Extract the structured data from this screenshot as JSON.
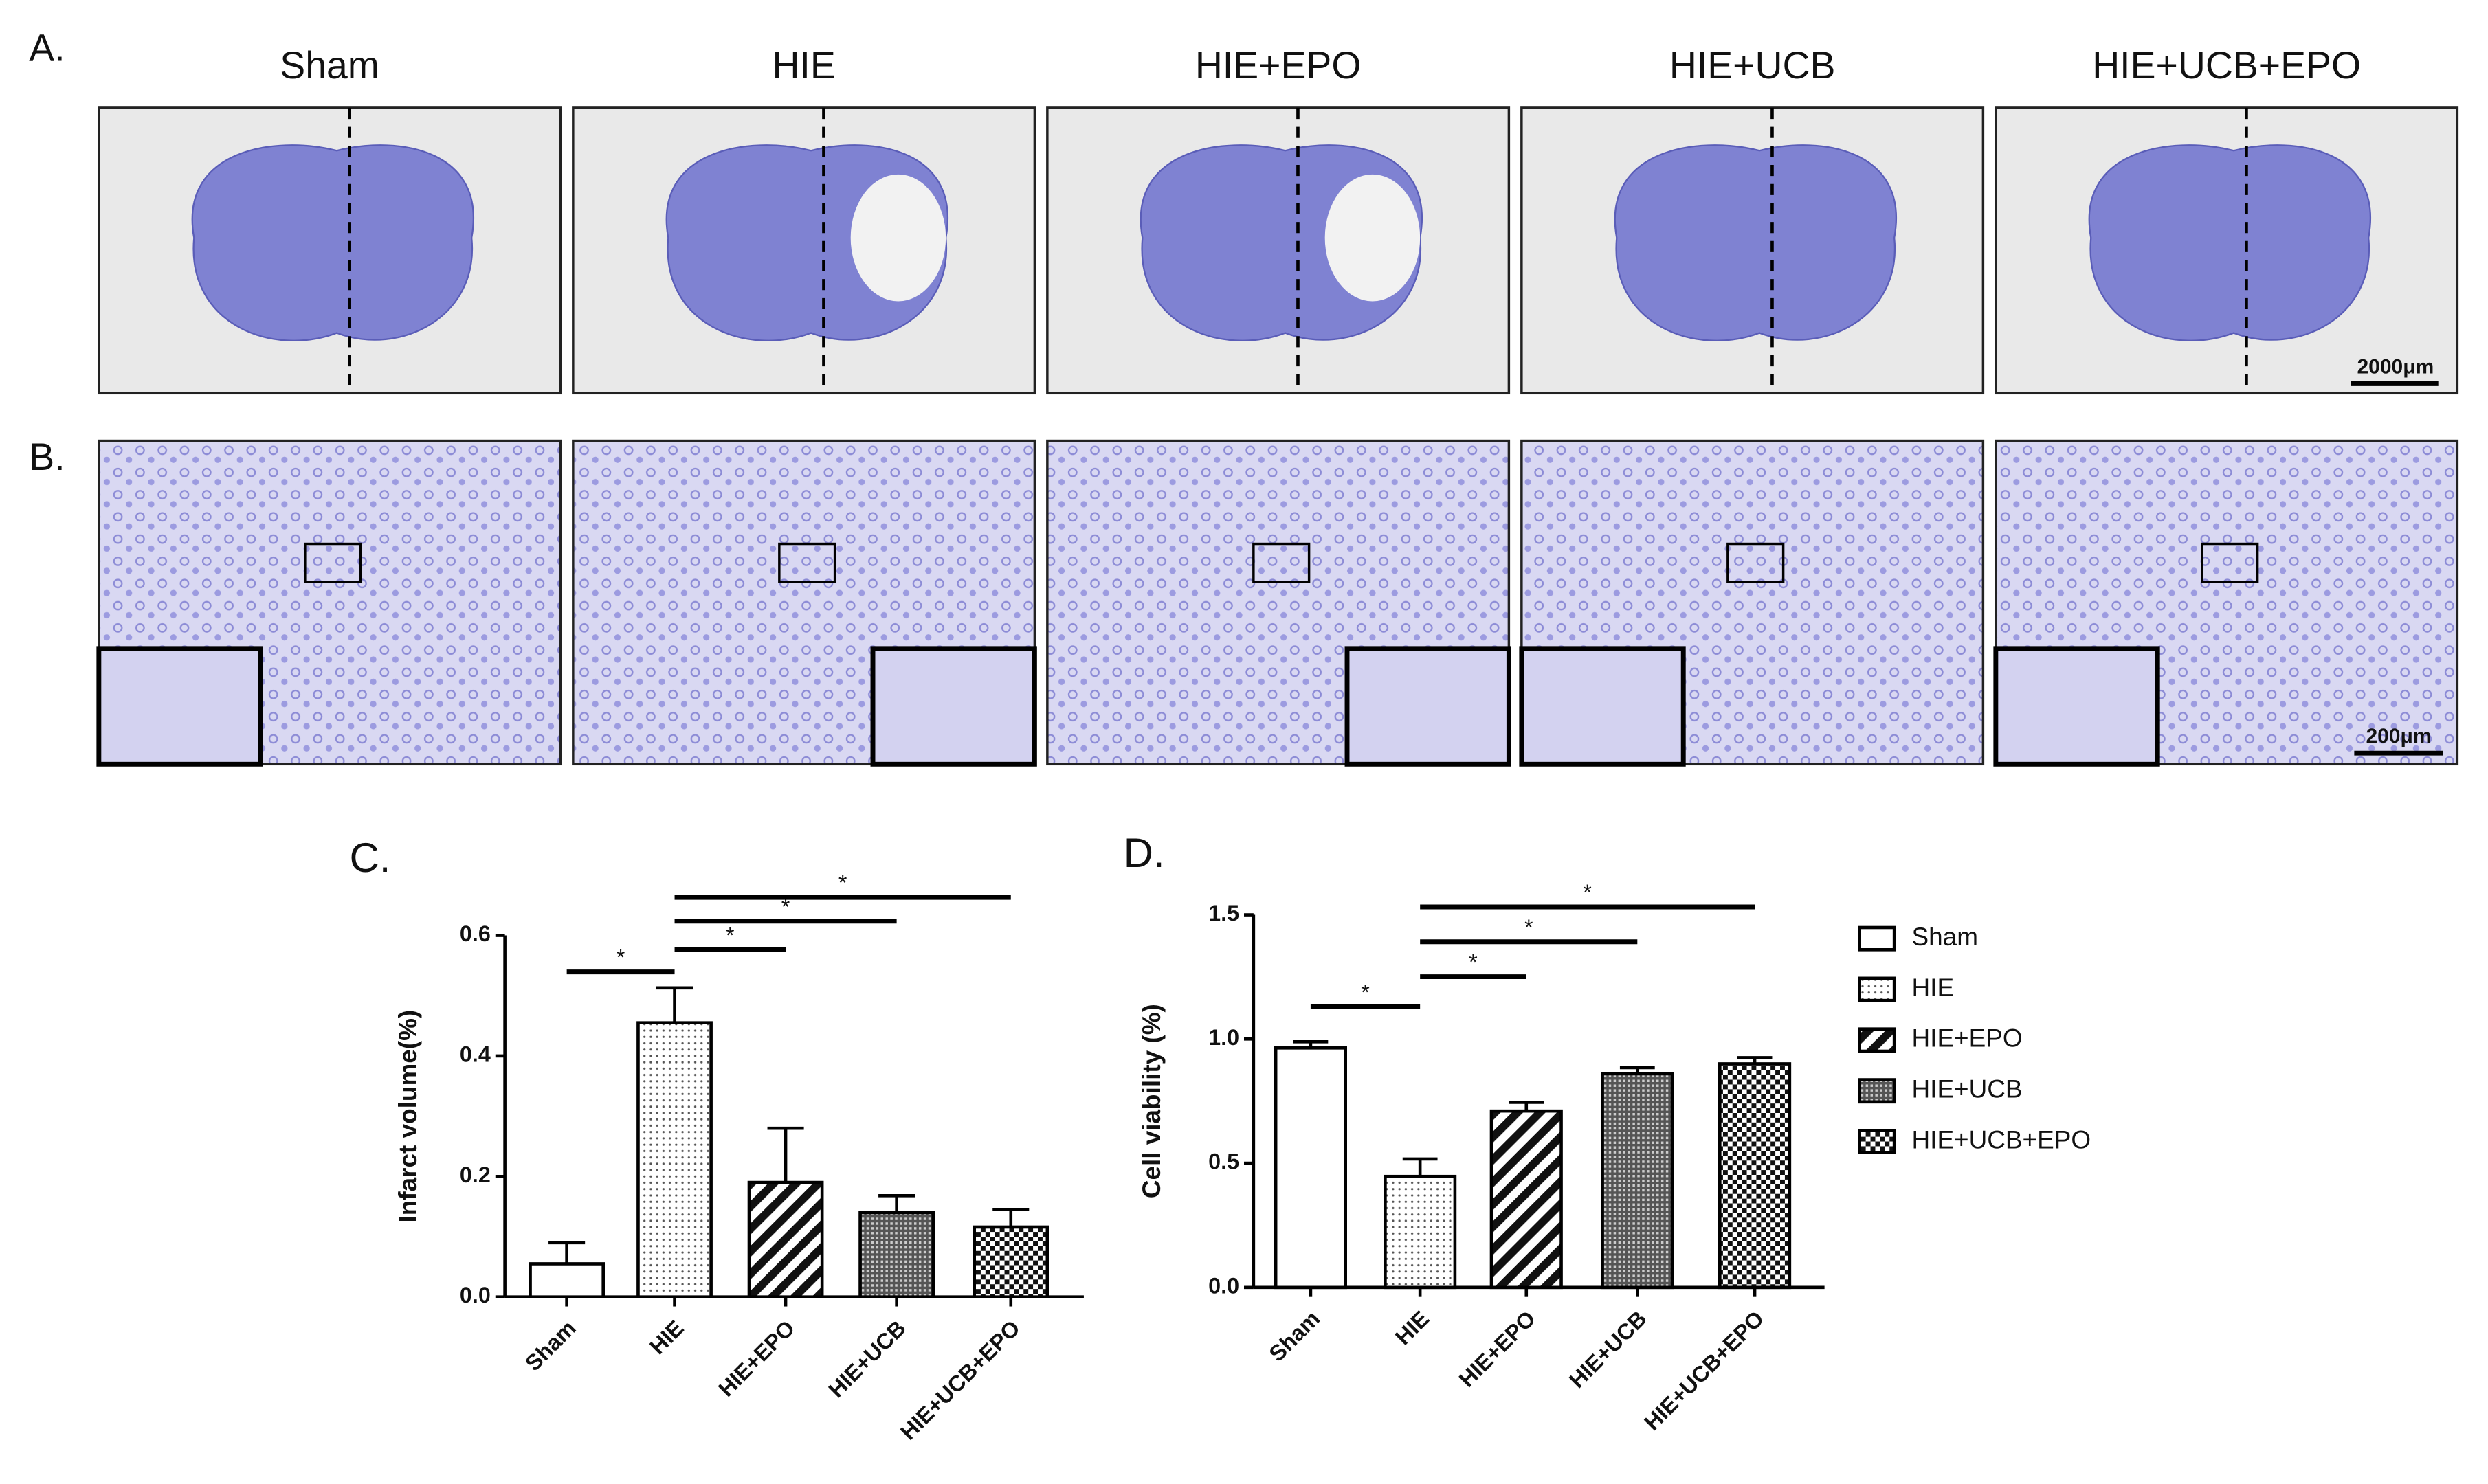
{
  "figure": {
    "panel_labels": [
      "A.",
      "B."
    ],
    "columns": [
      "Sham",
      "HIE",
      "HIE+EPO",
      "HIE+UCB",
      "HIE+UCB+EPO"
    ],
    "scale_bars": [
      "2000μm",
      "200μm"
    ]
  },
  "chart_data": [
    {
      "type": "bar",
      "label": "C.",
      "y_label": "Infarct volume(%)",
      "categories": [
        "Sham",
        "HIE",
        "HIE+EPO",
        "HIE+UCB",
        "HIE+UCB+EPO"
      ],
      "values": [
        0.055,
        0.455,
        0.19,
        0.14,
        0.116
      ],
      "errors": [
        0.035,
        0.058,
        0.09,
        0.028,
        0.029
      ],
      "fills": [
        "white",
        "dots",
        "hatch",
        "dense",
        "checker"
      ],
      "ylim": [
        0,
        0.6
      ],
      "yticks": [
        {
          "value": 0,
          "label": "0.0"
        },
        0.2,
        0.4,
        0.6
      ],
      "annotations": [
        {
          "text": "*",
          "groups": [
            0,
            1
          ]
        },
        {
          "text": "*",
          "groups": [
            1,
            2
          ]
        },
        {
          "text": "*",
          "groups": [
            1,
            3
          ]
        },
        {
          "text": "*",
          "groups": [
            1,
            4
          ]
        }
      ]
    },
    {
      "type": "bar",
      "label": "D.",
      "y_label": "Cell viability (%)",
      "categories": [
        "Sham",
        "HIE",
        "HIE+EPO",
        "HIE+UCB",
        "HIE+UCB+EPO"
      ],
      "values": [
        0.964,
        0.447,
        0.71,
        0.86,
        0.9
      ],
      "errors": [
        0.025,
        0.07,
        0.035,
        0.025,
        0.025
      ],
      "fills": [
        "white",
        "dots",
        "hatch",
        "dense",
        "checker"
      ],
      "ylim": [
        0,
        1.5
      ],
      "yticks": [
        {
          "value": 0,
          "label": "0.0"
        },
        0.5,
        {
          "value": 1,
          "label": "1.0"
        },
        1.5
      ],
      "legend": "right",
      "annotations": [
        {
          "text": "*",
          "groups": [
            0,
            1
          ]
        },
        {
          "text": "*",
          "groups": [
            1,
            2
          ]
        },
        {
          "text": "*",
          "groups": [
            1,
            3
          ]
        },
        {
          "text": "*",
          "groups": [
            1,
            4
          ]
        }
      ]
    }
  ]
}
